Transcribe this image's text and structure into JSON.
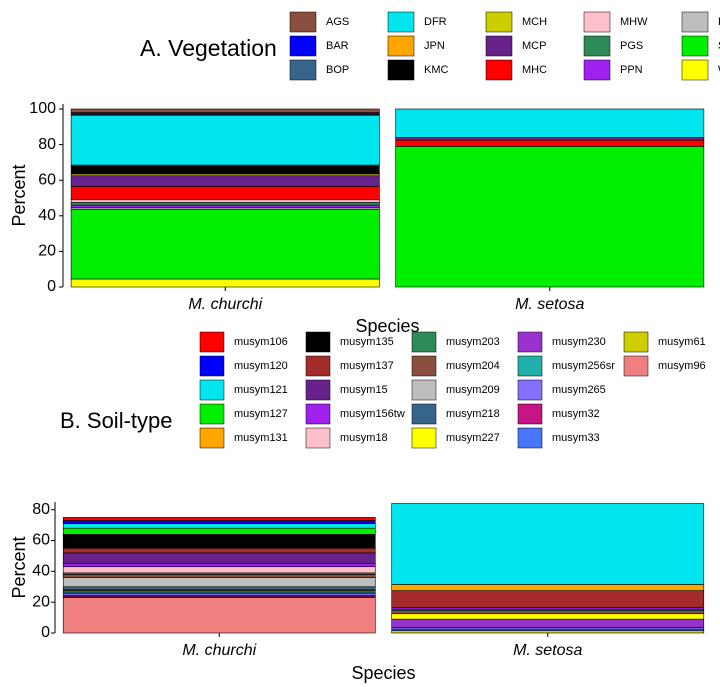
{
  "chart_data": [
    {
      "type": "bar",
      "stacked": true,
      "title": "A. Vegetation",
      "xlabel": "Species",
      "ylabel": "Percent",
      "categories": [
        "M. churchi",
        "M. setosa"
      ],
      "ylim": [
        0,
        100
      ],
      "yticks": [
        0,
        20,
        40,
        60,
        80,
        100
      ],
      "series": [
        {
          "name": "AGS",
          "color": "#8b4f3f",
          "values": [
            2,
            0
          ]
        },
        {
          "name": "BAR",
          "color": "#0000ff",
          "values": [
            1,
            0
          ]
        },
        {
          "name": "BOP",
          "color": "#36648b",
          "values": [
            0.5,
            0
          ]
        },
        {
          "name": "DFR",
          "color": "#00e5ee",
          "values": [
            28,
            16
          ]
        },
        {
          "name": "JPN",
          "color": "#ffa500",
          "values": [
            0.5,
            0
          ]
        },
        {
          "name": "KMC",
          "color": "#000000",
          "values": [
            4.5,
            0
          ]
        },
        {
          "name": "MCH",
          "color": "#cdcd00",
          "values": [
            1,
            0
          ]
        },
        {
          "name": "MCP",
          "color": "#68228b",
          "values": [
            6,
            1.5
          ]
        },
        {
          "name": "MHC",
          "color": "#ff0000",
          "values": [
            7.5,
            3.5
          ]
        },
        {
          "name": "MHW",
          "color": "#ffc0cb",
          "values": [
            1.5,
            0
          ]
        },
        {
          "name": "PGS",
          "color": "#2e8b57",
          "values": [
            1.5,
            0
          ]
        },
        {
          "name": "PPN",
          "color": "#a020f0",
          "values": [
            1.5,
            0
          ]
        },
        {
          "name": "RFR",
          "color": "#bebebe",
          "values": [
            1,
            0
          ]
        },
        {
          "name": "SMC",
          "color": "#00ee00",
          "values": [
            39,
            79
          ]
        },
        {
          "name": "WFR",
          "color": "#ffff00",
          "values": [
            4.5,
            0
          ]
        }
      ]
    },
    {
      "type": "bar",
      "stacked": true,
      "title": "B. Soil-type",
      "xlabel": "Species",
      "ylabel": "Percent",
      "categories": [
        "M. churchi",
        "M. setosa"
      ],
      "ylim": [
        0,
        85
      ],
      "yticks": [
        0,
        20,
        40,
        60,
        80
      ],
      "series": [
        {
          "name": "musym106",
          "color": "#ff0000",
          "values": [
            2,
            0
          ]
        },
        {
          "name": "musym120",
          "color": "#0000ff",
          "values": [
            2,
            0
          ]
        },
        {
          "name": "musym121",
          "color": "#00e5ee",
          "values": [
            3,
            52.5
          ]
        },
        {
          "name": "musym127",
          "color": "#00ee00",
          "values": [
            4,
            0
          ]
        },
        {
          "name": "musym131",
          "color": "#ffa500",
          "values": [
            0,
            4
          ]
        },
        {
          "name": "musym135",
          "color": "#000000",
          "values": [
            9,
            0
          ]
        },
        {
          "name": "musym137",
          "color": "#a52a2a",
          "values": [
            3,
            11
          ]
        },
        {
          "name": "musym15",
          "color": "#68228b",
          "values": [
            7,
            0
          ]
        },
        {
          "name": "musym156tw",
          "color": "#a020f0",
          "values": [
            2,
            1
          ]
        },
        {
          "name": "musym18",
          "color": "#ffc0cb",
          "values": [
            4,
            0
          ]
        },
        {
          "name": "musym203",
          "color": "#2e8b57",
          "values": [
            1,
            1
          ]
        },
        {
          "name": "musym204",
          "color": "#8b4f3f",
          "values": [
            2,
            2
          ]
        },
        {
          "name": "musym209",
          "color": "#bebebe",
          "values": [
            6,
            0
          ]
        },
        {
          "name": "musym218",
          "color": "#36648b",
          "values": [
            2,
            0
          ]
        },
        {
          "name": "musym227",
          "color": "#ffff00",
          "values": [
            0.5,
            3.5
          ]
        },
        {
          "name": "musym230",
          "color": "#9932cc",
          "values": [
            1,
            5.5
          ]
        },
        {
          "name": "musym256sr",
          "color": "#20b2aa",
          "values": [
            1,
            0
          ]
        },
        {
          "name": "musym265",
          "color": "#8470ff",
          "values": [
            1,
            1
          ]
        },
        {
          "name": "musym32",
          "color": "#c71585",
          "values": [
            1,
            0
          ]
        },
        {
          "name": "musym33",
          "color": "#4876ff",
          "values": [
            0.5,
            1
          ]
        },
        {
          "name": "musym61",
          "color": "#cdcd00",
          "values": [
            0,
            1.5
          ]
        },
        {
          "name": "musym96",
          "color": "#f08080",
          "values": [
            23,
            0
          ]
        }
      ]
    }
  ]
}
